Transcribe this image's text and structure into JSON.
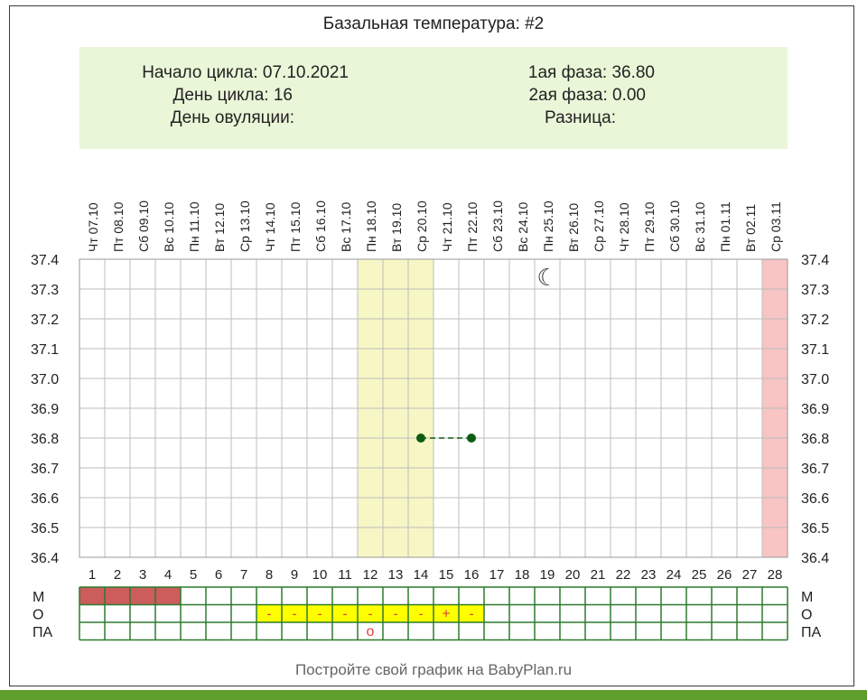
{
  "title": "Базальная температура: #2",
  "info": {
    "cycle_start": "Начало цикла: 07.10.2021",
    "cycle_day": "День цикла: 16",
    "ovulation_day": "День овуляции:",
    "phase1": "1ая фаза: 36.80",
    "phase2": "2ая фаза: 0.00",
    "difference": "Разница:"
  },
  "footer": "Постройте свой график на BabyPlan.ru",
  "colors": {
    "grid": "#5a5a5a",
    "point": "#0d5c12",
    "highlight": "#f7f6c5",
    "today": "#f8c4c4",
    "period": "#cd5c5c",
    "bottom_grid": "#2d7a2d",
    "discharge": "#ffff00",
    "discharge_mark": "#e04040",
    "footer_bar": "#5e9e2a"
  },
  "chart_data": {
    "type": "line",
    "title": "Базальная температура: #2",
    "y_ticks": [
      "37.4",
      "37.3",
      "37.2",
      "37.1",
      "37.0",
      "36.9",
      "36.8",
      "36.7",
      "36.6",
      "36.5",
      "36.4"
    ],
    "ylim": [
      36.4,
      37.4
    ],
    "days": [
      {
        "n": "1",
        "date": "Чт 07.10"
      },
      {
        "n": "2",
        "date": "Пт 08.10"
      },
      {
        "n": "3",
        "date": "Сб 09.10"
      },
      {
        "n": "4",
        "date": "Вс 10.10"
      },
      {
        "n": "5",
        "date": "Пн 11.10"
      },
      {
        "n": "6",
        "date": "Вт 12.10"
      },
      {
        "n": "7",
        "date": "Ср 13.10"
      },
      {
        "n": "8",
        "date": "Чт 14.10"
      },
      {
        "n": "9",
        "date": "Пт 15.10"
      },
      {
        "n": "10",
        "date": "Сб 16.10"
      },
      {
        "n": "11",
        "date": "Вс 17.10"
      },
      {
        "n": "12",
        "date": "Пн 18.10"
      },
      {
        "n": "13",
        "date": "Вт 19.10"
      },
      {
        "n": "14",
        "date": "Ср 20.10"
      },
      {
        "n": "15",
        "date": "Чт 21.10"
      },
      {
        "n": "16",
        "date": "Пт 22.10"
      },
      {
        "n": "17",
        "date": "Сб 23.10"
      },
      {
        "n": "18",
        "date": "Вс 24.10"
      },
      {
        "n": "19",
        "date": "Пн 25.10"
      },
      {
        "n": "20",
        "date": "Вт 26.10"
      },
      {
        "n": "21",
        "date": "Ср 27.10"
      },
      {
        "n": "22",
        "date": "Чт 28.10"
      },
      {
        "n": "23",
        "date": "Пт 29.10"
      },
      {
        "n": "24",
        "date": "Сб 30.10"
      },
      {
        "n": "25",
        "date": "Вс 31.10"
      },
      {
        "n": "26",
        "date": "Пн 01.11"
      },
      {
        "n": "27",
        "date": "Вт 02.11"
      },
      {
        "n": "28",
        "date": "Ср 03.11"
      }
    ],
    "series": [
      {
        "points": [
          {
            "day": 14,
            "value": 36.8
          },
          {
            "day": 16,
            "value": 36.8
          }
        ]
      }
    ],
    "highlight_days": [
      12,
      14
    ],
    "today_day": 28,
    "moon_day": 19,
    "moon_symbol": "☾",
    "rows": [
      {
        "label": "М",
        "period_days": [
          1,
          2,
          3,
          4
        ]
      },
      {
        "label": "О",
        "yellow_days": [
          8,
          16
        ],
        "marks": {
          "8": "-",
          "9": "-",
          "10": "-",
          "11": "-",
          "12": "-",
          "13": "-",
          "14": "-",
          "15": "+",
          "16": "-"
        }
      },
      {
        "label": "ПА",
        "marks": {
          "12": "o"
        }
      }
    ]
  }
}
